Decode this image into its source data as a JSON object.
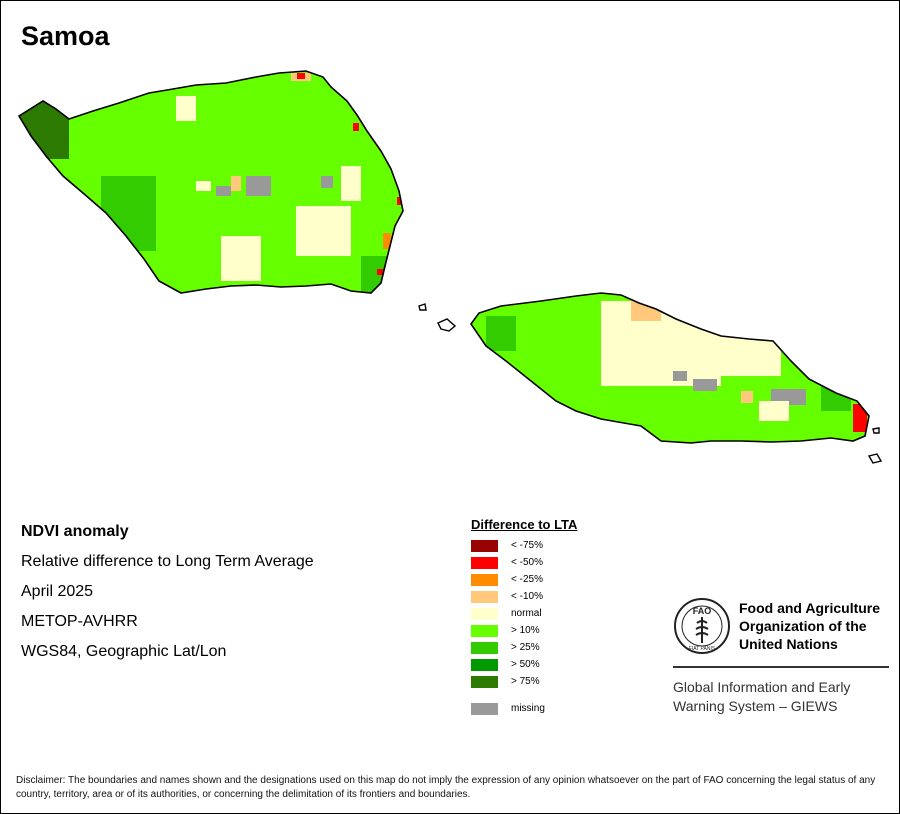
{
  "map_title": "Samoa",
  "info": {
    "title": "NDVI anomaly",
    "subtitle": "Relative difference to Long Term Average",
    "date": "April 2025",
    "sensor": "METOP-AVHRR",
    "projection": "WGS84, Geographic Lat/Lon"
  },
  "legend": {
    "title": "Difference to LTA",
    "items": [
      {
        "label": "< -75%",
        "color": "#990000"
      },
      {
        "label": "< -50%",
        "color": "#ff0000"
      },
      {
        "label": "< -25%",
        "color": "#ff8c00"
      },
      {
        "label": "< -10%",
        "color": "#ffc87a"
      },
      {
        "label": "normal",
        "color": "#ffffcc"
      },
      {
        "label": "> 10%",
        "color": "#66ff00"
      },
      {
        "label": "> 25%",
        "color": "#33cc00"
      },
      {
        "label": "> 50%",
        "color": "#009900"
      },
      {
        "label": "> 75%",
        "color": "#2d7a00"
      }
    ],
    "missing": {
      "label": "missing",
      "color": "#999999"
    }
  },
  "fao": {
    "organization": "Food and Agriculture Organization of the United Nations",
    "logo_text": "FAO",
    "logo_motto": "FIAT PANIS",
    "system": "Global Information and Early Warning System – GIEWS"
  },
  "disclaimer": "Disclaimer: The boundaries and names shown and the designations used on this map do not imply the expression of any opinion whatsoever on the part of FAO concerning the legal status of any country, territory, area or of its authorities, or concerning the delimitation of its frontiers and boundaries."
}
